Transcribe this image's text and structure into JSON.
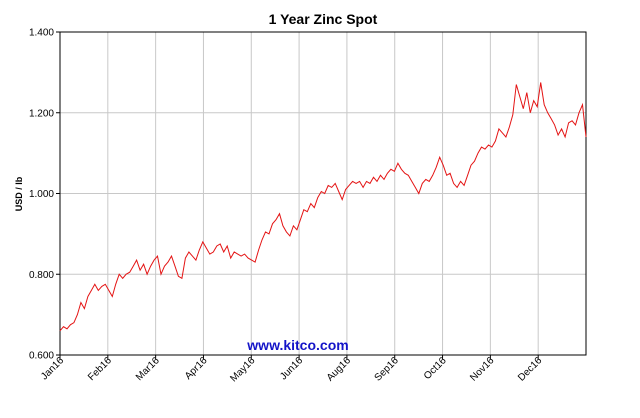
{
  "chart_data": {
    "type": "line",
    "title": "1 Year Zinc Spot",
    "xlabel": "",
    "ylabel": "USD / lb",
    "watermark": "www.kitco.com",
    "ylim": [
      0.6,
      1.4
    ],
    "yticks": [
      "0.600",
      "0.800",
      "1.000",
      "1.200",
      "1.400"
    ],
    "xticks": [
      "Jan16",
      "Feb16",
      "Mar16",
      "Apr16",
      "May16",
      "Jun16",
      "Aug16",
      "Sep16",
      "Oct16",
      "Nov16",
      "Dec16"
    ],
    "grid": true,
    "colors": {
      "line": "#e41414",
      "grid": "#c8c8c8",
      "watermark": "#1414c8"
    },
    "series": [
      {
        "values": [
          0.66,
          0.67,
          0.665,
          0.675,
          0.68,
          0.7,
          0.73,
          0.715,
          0.745,
          0.76,
          0.775,
          0.76,
          0.77,
          0.775,
          0.76,
          0.745,
          0.775,
          0.8,
          0.79,
          0.8,
          0.805,
          0.82,
          0.835,
          0.81,
          0.825,
          0.8,
          0.82,
          0.835,
          0.845,
          0.8,
          0.82,
          0.83,
          0.845,
          0.82,
          0.795,
          0.79,
          0.84,
          0.855,
          0.845,
          0.835,
          0.86,
          0.88,
          0.865,
          0.85,
          0.855,
          0.87,
          0.875,
          0.855,
          0.87,
          0.84,
          0.855,
          0.85,
          0.845,
          0.85,
          0.84,
          0.835,
          0.83,
          0.86,
          0.885,
          0.905,
          0.9,
          0.925,
          0.935,
          0.95,
          0.92,
          0.905,
          0.895,
          0.92,
          0.91,
          0.935,
          0.96,
          0.955,
          0.975,
          0.965,
          0.99,
          1.005,
          1.0,
          1.02,
          1.015,
          1.025,
          1.005,
          0.985,
          1.01,
          1.02,
          1.03,
          1.025,
          1.03,
          1.015,
          1.03,
          1.025,
          1.04,
          1.03,
          1.045,
          1.035,
          1.05,
          1.06,
          1.055,
          1.075,
          1.06,
          1.05,
          1.045,
          1.03,
          1.015,
          1.0,
          1.025,
          1.035,
          1.03,
          1.045,
          1.065,
          1.09,
          1.07,
          1.045,
          1.05,
          1.025,
          1.015,
          1.03,
          1.02,
          1.045,
          1.07,
          1.08,
          1.1,
          1.115,
          1.11,
          1.12,
          1.115,
          1.13,
          1.16,
          1.15,
          1.14,
          1.165,
          1.195,
          1.27,
          1.24,
          1.21,
          1.25,
          1.2,
          1.23,
          1.215,
          1.275,
          1.22,
          1.2,
          1.185,
          1.17,
          1.145,
          1.16,
          1.14,
          1.175,
          1.18,
          1.17,
          1.2,
          1.22,
          1.14
        ]
      }
    ]
  }
}
